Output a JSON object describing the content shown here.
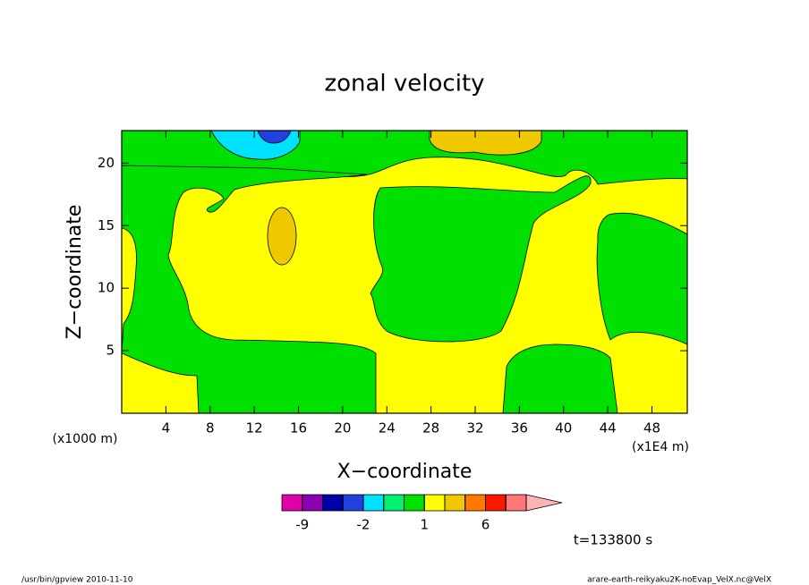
{
  "chart_data": {
    "type": "contour",
    "title": "zonal velocity",
    "xlabel": "X−coordinate",
    "ylabel": "Z−coordinate",
    "y_unit": "(x1000 m)",
    "x_unit": "(x1E4 m)",
    "xlim": [
      0,
      51.2
    ],
    "xticks": [
      4,
      8,
      12,
      16,
      20,
      24,
      28,
      32,
      36,
      40,
      44,
      48
    ],
    "ylim": [
      0,
      22.6
    ],
    "yticks": [
      5,
      10,
      15,
      20
    ],
    "colorbar": {
      "levels": [
        -9,
        -6,
        -3,
        -2,
        -1,
        0,
        1,
        2,
        3,
        6,
        9,
        12
      ],
      "ticks": [
        -9,
        -2,
        1,
        6
      ],
      "colors": [
        "#e000a8",
        "#8c00b4",
        "#0000a8",
        "#2040e0",
        "#00e0ff",
        "#00f070",
        "#00e000",
        "#ffff00",
        "#f0c800",
        "#ff7800",
        "#ff1800",
        "#ff7878",
        "#ffb4b4"
      ]
    },
    "annotation": "t=133800 s",
    "footer_left": "/usr/bin/gpview   2010-11-10",
    "footer_right": "arare-earth-reikyaku2K-noEvap_VelX.nc@VelX"
  }
}
